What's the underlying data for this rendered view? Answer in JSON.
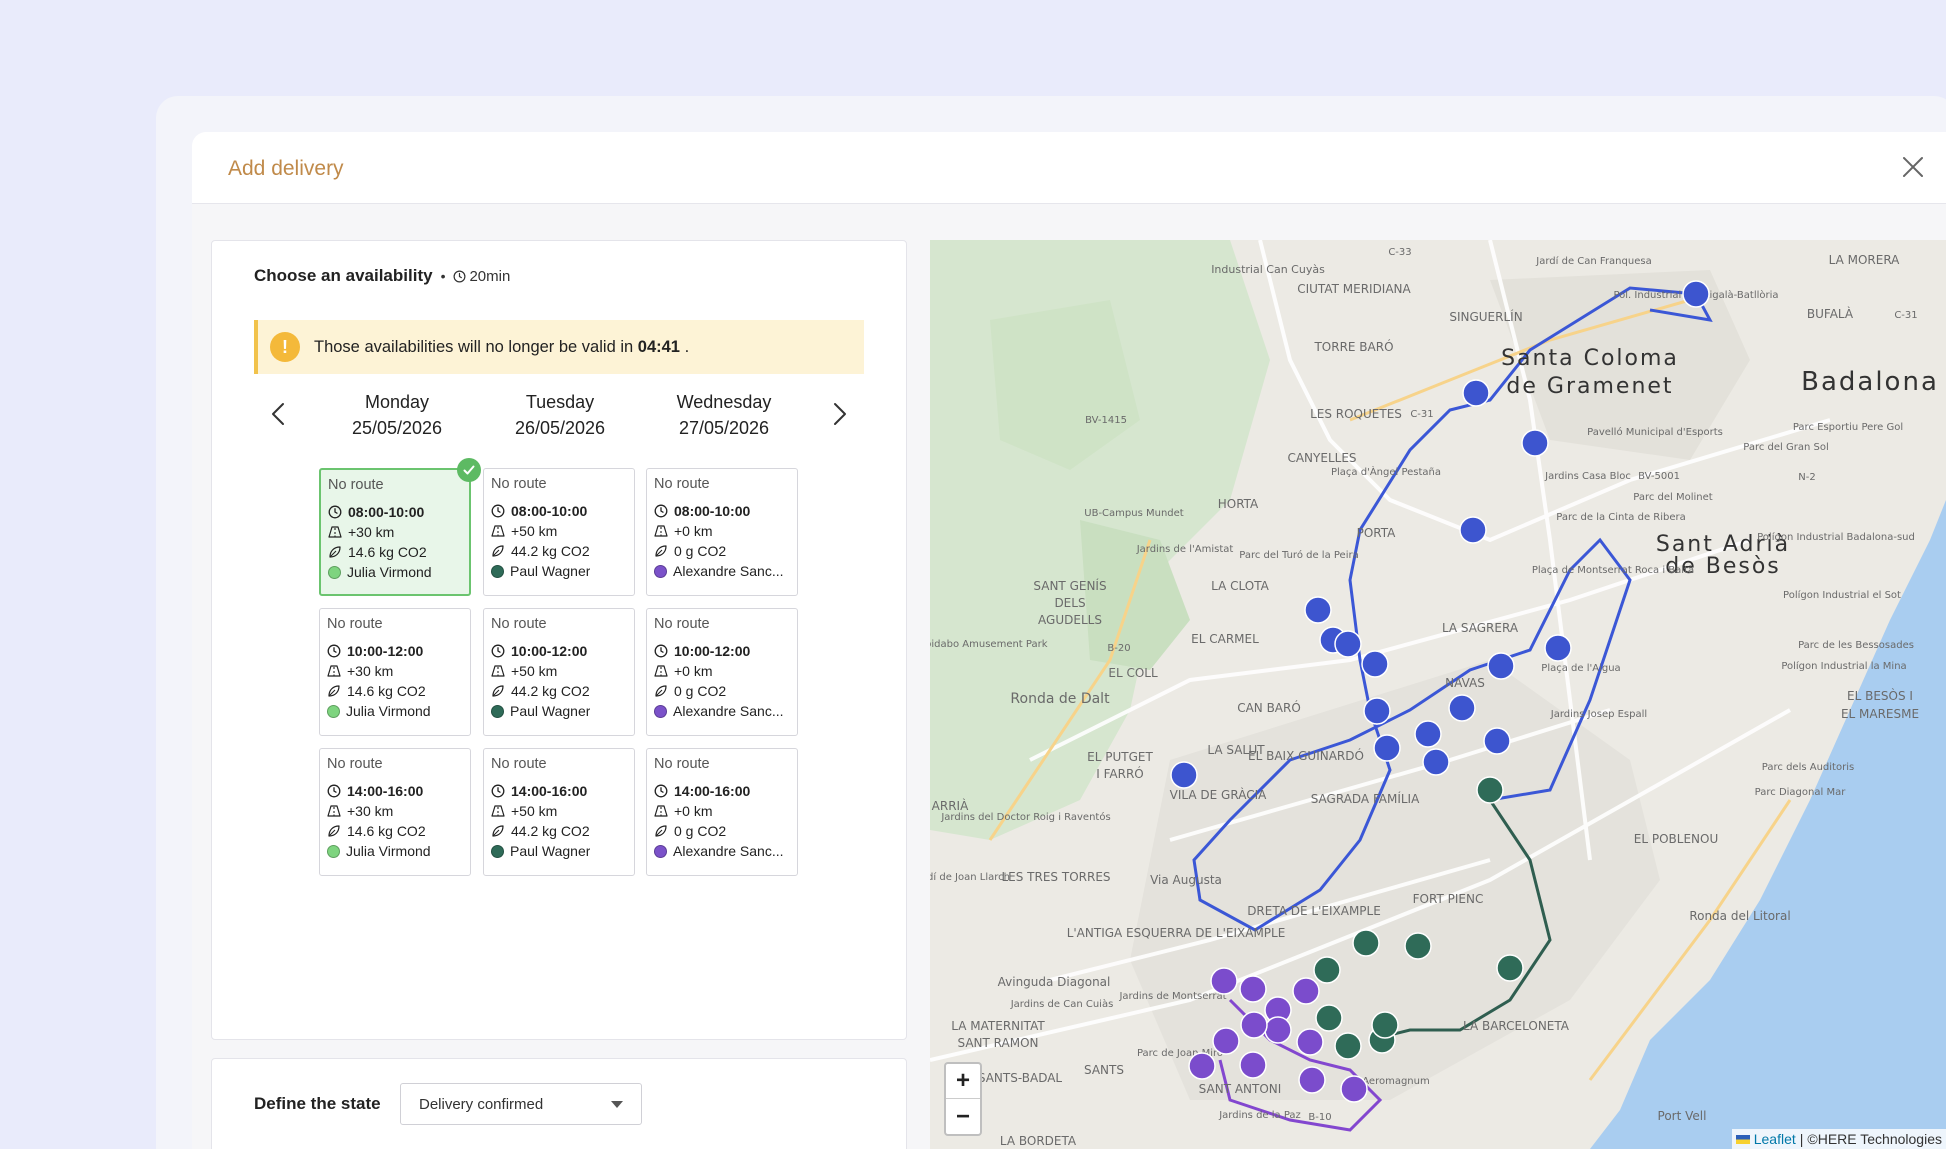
{
  "modal": {
    "title": "Add delivery"
  },
  "availability": {
    "title": "Choose an availability",
    "duration": "20min",
    "warning_prefix": "Those availabilities will no longer be valid in",
    "warning_time": "04:41",
    "warning_suffix": "."
  },
  "days": [
    {
      "name": "Monday",
      "date": "25/05/2026"
    },
    {
      "name": "Tuesday",
      "date": "26/05/2026"
    },
    {
      "name": "Wednesday",
      "date": "27/05/2026"
    }
  ],
  "slots": [
    [
      {
        "route": "No route",
        "time": "08:00-10:00",
        "distance": "+30 km",
        "co2": "14.6 kg CO2",
        "driver": "Julia Virmond",
        "selected": true
      },
      {
        "route": "No route",
        "time": "10:00-12:00",
        "distance": "+30 km",
        "co2": "14.6 kg CO2",
        "driver": "Julia Virmond"
      },
      {
        "route": "No route",
        "time": "14:00-16:00",
        "distance": "+30 km",
        "co2": "14.6 kg CO2",
        "driver": "Julia Virmond"
      }
    ],
    [
      {
        "route": "No route",
        "time": "08:00-10:00",
        "distance": "+50 km",
        "co2": "44.2 kg CO2",
        "driver": "Paul Wagner"
      },
      {
        "route": "No route",
        "time": "10:00-12:00",
        "distance": "+50 km",
        "co2": "44.2 kg CO2",
        "driver": "Paul Wagner"
      },
      {
        "route": "No route",
        "time": "14:00-16:00",
        "distance": "+50 km",
        "co2": "44.2 kg CO2",
        "driver": "Paul Wagner"
      }
    ],
    [
      {
        "route": "No route",
        "time": "08:00-10:00",
        "distance": "+0 km",
        "co2": "0 g CO2",
        "driver": "Alexandre Sanc..."
      },
      {
        "route": "No route",
        "time": "10:00-12:00",
        "distance": "+0 km",
        "co2": "0 g CO2",
        "driver": "Alexandre Sanc..."
      },
      {
        "route": "No route",
        "time": "14:00-16:00",
        "distance": "+0 km",
        "co2": "0 g CO2",
        "driver": "Alexandre Sanc..."
      }
    ]
  ],
  "driver_colors": {
    "Julia Virmond": "#7ed47f",
    "Paul Wagner": "#2f6b58",
    "Alexandre Sanc...": "#7b52c9"
  },
  "state": {
    "label": "Define the state",
    "value": "Delivery confirmed"
  },
  "map": {
    "zoom_in": "+",
    "zoom_out": "−",
    "attribution_leaflet": "Leaflet",
    "attribution_sep": "|",
    "attribution_provider": "©HERE Technologies",
    "places": [
      "Industrial Can Cuyàs",
      "C-33",
      "Jardí de Can Franquesa",
      "LA MORERA",
      "CIUTAT MERIDIANA",
      "SINGUERLÍN",
      "Pol. Industrial Montigalà-Batllòria",
      "BUFALÀ",
      "C-31",
      "TORRE BARÓ",
      "Santa Coloma",
      "de Gramenet",
      "Badalona",
      "BV-1415",
      "LES ROQUETES",
      "C-31",
      "Pavelló Municipal d'Esports",
      "Parc Esportiu Pere Gol",
      "CANYELLES",
      "Plaça d'Àngel Pestaña",
      "Jardins Casa Bloc",
      "BV-5001",
      "Parc del Gran Sol",
      "N-2",
      "UB-Campus Mundet",
      "HORTA",
      "Parc del Molinet",
      "Parc de la Cinta de Ribera",
      "Sant Adrià",
      "de Besòs",
      "Polígon Industrial Badalona-sud",
      "Jardins de l'Amistat",
      "Parc del Turó de la Peira",
      "PORTA",
      "Plaça de Montserrat Roca i Baltà",
      "SANT GENÍS",
      "DELS",
      "AGUDELLS",
      "LA CLOTA",
      "Polígon Industrial el Sot",
      "Tibidabo Amusement Park",
      "B-20",
      "EL CARMEL",
      "LA SAGRERA",
      "Parc de les Bessosades",
      "Ronda de Dalt",
      "EL COLL",
      "Plaça de l'Aigua",
      "NAVAS",
      "EL BESÒS I",
      "EL MARESME",
      "Polígon Industrial la Mina",
      "CAN BARÓ",
      "Jardins Josep Espall",
      "LA SALUT",
      "EL BAIX GUINARDÓ",
      "EL PUTGET",
      "I FARRÓ",
      "VILA DE GRÀCIA",
      "SAGRADA FAMÍLIA",
      "Parc dels Auditoris",
      "Parc Diagonal Mar",
      "ARRIÀ",
      "Jardins del Doctor Roig i Raventós",
      "EL POBLENOU",
      "Jardí de Joan Llarch",
      "LES TRES TORRES",
      "Via Augusta",
      "DRETA DE L'EIXAMPLE",
      "FORT PIENC",
      "Ronda del Litoral",
      "L'ANTIGA ESQUERRA DE L'EIXAMPLE",
      "Avinguda Diagonal",
      "Jardins de Can Cuiàs",
      "Jardins de Montserrat",
      "LA MATERNITAT",
      "SANT RAMON",
      "Parc de Joan Miró",
      "SANTS",
      "SANTS-BADAL",
      "SANT ANTONI",
      "LA BARCELONETA",
      "Port Vell",
      "Jardins de la Paz",
      "B-10",
      "LA BORDETA",
      "Aeromagnum"
    ]
  }
}
